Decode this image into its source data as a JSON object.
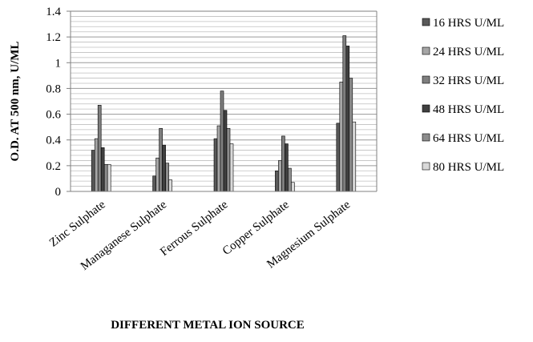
{
  "chart_data": {
    "type": "bar",
    "xlabel": "DIFFERENT METAL ION SOURCE",
    "ylabel": "O.D. AT 500 nm, U/ML",
    "ylim": [
      0,
      1.4
    ],
    "ytick_step": 0.2,
    "grid": true,
    "legend": "right",
    "categories": [
      "Zinc Sulphate",
      "Managanese Sulphate",
      "Ferrous Sulphate",
      "Copper Sulphate",
      "Magnesium Sulphate"
    ],
    "series": [
      {
        "name": "16 HRS U/ML",
        "color": "#595959",
        "values": [
          0.32,
          0.12,
          0.41,
          0.16,
          0.53
        ]
      },
      {
        "name": "24 HRS U/ML",
        "color": "#a6a6a6",
        "values": [
          0.41,
          0.26,
          0.51,
          0.24,
          0.85
        ]
      },
      {
        "name": "32 HRS U/ML",
        "color": "#7f7f7f",
        "values": [
          0.67,
          0.49,
          0.78,
          0.43,
          1.21
        ]
      },
      {
        "name": "48 HRS U/ML",
        "color": "#404040",
        "values": [
          0.34,
          0.36,
          0.63,
          0.37,
          1.13
        ]
      },
      {
        "name": "64 HRS U/ML",
        "color": "#8c8c8c",
        "values": [
          0.21,
          0.22,
          0.49,
          0.18,
          0.88
        ]
      },
      {
        "name": "80 HRS U/ML",
        "color": "#d9d9d9",
        "values": [
          0.21,
          0.09,
          0.37,
          0.07,
          0.54
        ]
      }
    ]
  }
}
